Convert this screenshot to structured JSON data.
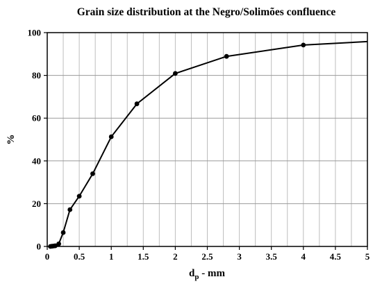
{
  "chart_data": {
    "type": "line",
    "title": "Grain size distribution at the Negro/Solimões confluence",
    "xlabel_main": "d",
    "xlabel_sub": "p",
    "xlabel_rest": " - mm",
    "ylabel": "%",
    "xlim": [
      0,
      5
    ],
    "ylim": [
      0,
      100
    ],
    "x_ticks": [
      0,
      0.5,
      1,
      1.5,
      2,
      2.5,
      3,
      3.5,
      4,
      4.5,
      5
    ],
    "x_tick_labels": [
      "0",
      "0.5",
      "1",
      "1.5",
      "2",
      "2.5",
      "3",
      "3.5",
      "4",
      "4.5",
      "5"
    ],
    "x_minor_step": 0.25,
    "y_ticks": [
      0,
      20,
      40,
      60,
      80,
      100
    ],
    "y_tick_labels": [
      "0",
      "20",
      "40",
      "60",
      "80",
      "100"
    ],
    "grid": true,
    "series": [
      {
        "points": [
          {
            "x": 0.05,
            "y": 0.0
          },
          {
            "x": 0.075,
            "y": 0.1
          },
          {
            "x": 0.1,
            "y": 0.2
          },
          {
            "x": 0.125,
            "y": 0.3
          },
          {
            "x": 0.18,
            "y": 1.2
          },
          {
            "x": 0.25,
            "y": 6.5
          },
          {
            "x": 0.355,
            "y": 17.2
          },
          {
            "x": 0.5,
            "y": 23.5
          },
          {
            "x": 0.71,
            "y": 34.0
          },
          {
            "x": 1.0,
            "y": 51.3
          },
          {
            "x": 1.4,
            "y": 66.7
          },
          {
            "x": 2.0,
            "y": 80.9
          },
          {
            "x": 2.8,
            "y": 88.9
          },
          {
            "x": 4.0,
            "y": 94.2
          }
        ],
        "line_end": {
          "x": 5.0,
          "y": 95.8
        }
      }
    ]
  }
}
